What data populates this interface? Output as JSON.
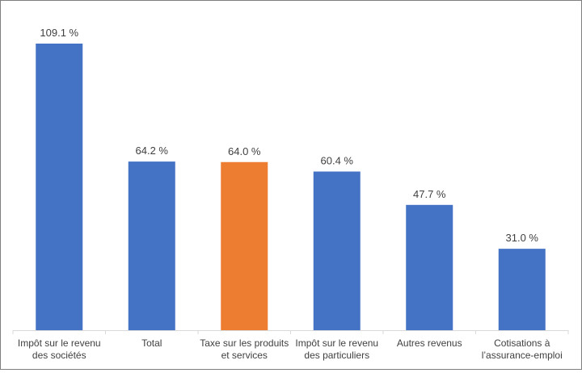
{
  "chart_data": {
    "type": "bar",
    "categories": [
      [
        "Impôt sur le revenu",
        "des sociétés"
      ],
      [
        "Total"
      ],
      [
        "Taxe sur les produits",
        "et services"
      ],
      [
        "Impôt sur le revenu",
        "des particuliers"
      ],
      [
        "Autres revenus"
      ],
      [
        "Cotisations à",
        "l’assurance-emploi"
      ]
    ],
    "values": [
      109.1,
      64.2,
      64.0,
      60.4,
      47.7,
      31.0
    ],
    "value_labels": [
      "109.1 %",
      "64.2 %",
      "64.0 %",
      "60.4 %",
      "47.7 %",
      "31.0 %"
    ],
    "colors": [
      "#4472c4",
      "#4472c4",
      "#ed7d31",
      "#4472c4",
      "#4472c4",
      "#4472c4"
    ],
    "ylim": [
      0,
      115
    ],
    "grid": false,
    "legend": "none"
  }
}
